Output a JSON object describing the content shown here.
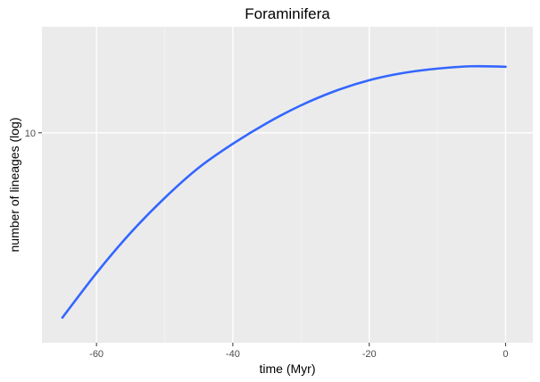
{
  "chart_data": {
    "type": "line",
    "title": "Foraminifera",
    "xlabel": "time (Myr)",
    "ylabel": "number of lineages (log)",
    "xlim": [
      -68,
      4
    ],
    "ylim_log10": [
      0.03,
      1.49
    ],
    "x_ticks": [
      -60,
      -40,
      -20,
      0
    ],
    "x_tick_labels": [
      "-60",
      "-40",
      "-20",
      "0"
    ],
    "y_ticks": [
      10
    ],
    "y_tick_labels": [
      "10"
    ],
    "y_scale": "log",
    "grid": true,
    "series": [
      {
        "color": "#3366ff",
        "x": [
          -65,
          -60,
          -55,
          -50,
          -45,
          -40,
          -35,
          -30,
          -25,
          -20,
          -15,
          -10,
          -5,
          0
        ],
        "y": [
          1.4,
          2.25,
          3.45,
          5.0,
          6.9,
          8.9,
          11.1,
          13.4,
          15.6,
          17.5,
          18.9,
          19.8,
          20.3,
          20.2
        ]
      }
    ],
    "colors": {
      "panel": "#ebebeb",
      "grid_major": "#ffffff",
      "tick_text": "#4d4d4d",
      "tick_mark": "#333333"
    }
  }
}
